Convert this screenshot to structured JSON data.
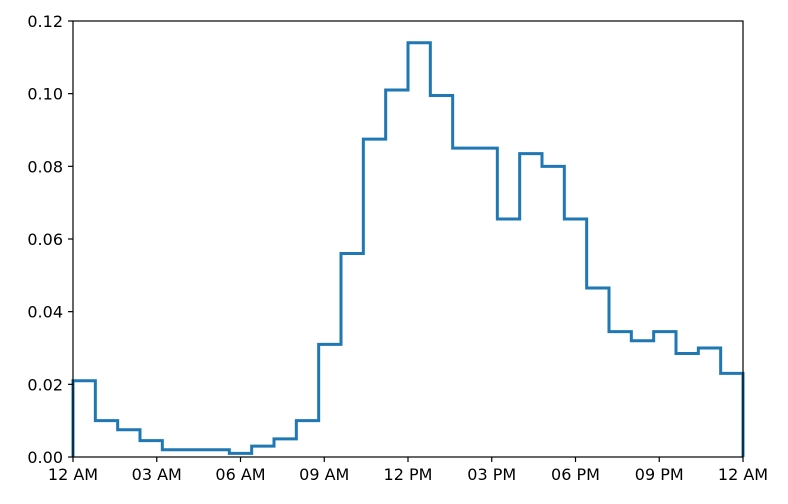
{
  "chart_data": {
    "type": "line",
    "drawstyle": "step-histogram",
    "title": "",
    "xlabel": "",
    "ylabel": "",
    "xlim": [
      0,
      24
    ],
    "ylim": [
      0,
      0.12
    ],
    "grid": false,
    "legend": "none",
    "colors": {
      "series": "#1f77b4",
      "axis": "#000000",
      "background": "#ffffff"
    },
    "x_ticks": [
      {
        "value": 0,
        "label": "12 AM"
      },
      {
        "value": 3,
        "label": "03 AM"
      },
      {
        "value": 6,
        "label": "06 AM"
      },
      {
        "value": 9,
        "label": "09 AM"
      },
      {
        "value": 12,
        "label": "12 PM"
      },
      {
        "value": 15,
        "label": "03 PM"
      },
      {
        "value": 18,
        "label": "06 PM"
      },
      {
        "value": 21,
        "label": "09 PM"
      },
      {
        "value": 24,
        "label": "12 AM"
      }
    ],
    "y_ticks": [
      {
        "value": 0.0,
        "label": "0.00"
      },
      {
        "value": 0.02,
        "label": "0.02"
      },
      {
        "value": 0.04,
        "label": "0.04"
      },
      {
        "value": 0.06,
        "label": "0.06"
      },
      {
        "value": 0.08,
        "label": "0.08"
      },
      {
        "value": 0.1,
        "label": "0.10"
      },
      {
        "value": 0.12,
        "label": "0.12"
      }
    ],
    "bin_edges": [
      0,
      0.8,
      1.6,
      2.4,
      3.2,
      4.0,
      4.8,
      5.6,
      6.4,
      7.2,
      8.0,
      8.8,
      9.6,
      10.4,
      11.2,
      12.0,
      12.8,
      13.6,
      14.4,
      15.2,
      16.0,
      16.8,
      17.6,
      18.4,
      19.2,
      20.0,
      20.8,
      21.6,
      22.4,
      23.2,
      24.0
    ],
    "series": [
      {
        "values": [
          0.021,
          0.01,
          0.0075,
          0.0045,
          0.002,
          0.002,
          0.002,
          0.001,
          0.003,
          0.005,
          0.01,
          0.031,
          0.056,
          0.0875,
          0.101,
          0.114,
          0.0995,
          0.085,
          0.085,
          0.0655,
          0.0835,
          0.08,
          0.0655,
          0.0465,
          0.0345,
          0.032,
          0.0345,
          0.0285,
          0.03,
          0.023
        ]
      }
    ]
  }
}
